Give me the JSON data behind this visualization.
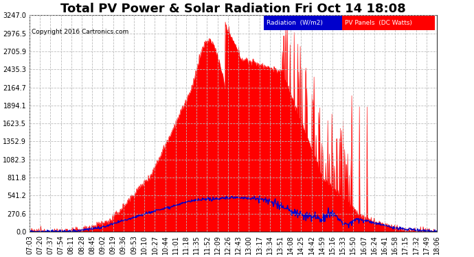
{
  "title": "Total PV Power & Solar Radiation Fri Oct 14 18:08",
  "copyright": "Copyright 2016 Cartronics.com",
  "background_color": "#ffffff",
  "plot_bg_color": "#ffffff",
  "grid_color": "#bbbbbb",
  "yticks": [
    0.0,
    270.6,
    541.2,
    811.8,
    1082.3,
    1352.9,
    1623.5,
    1894.1,
    2164.7,
    2435.3,
    2705.9,
    2976.5,
    3247.0
  ],
  "ymax": 3247.0,
  "pv_color": "#ff0000",
  "radiation_color": "#0000cc",
  "legend_radiation_bg": "#0000cc",
  "legend_pv_bg": "#ff0000",
  "legend_radiation_label": "Radiation  (W/m2)",
  "legend_pv_label": "PV Panels  (DC Watts)",
  "title_fontsize": 13,
  "axis_fontsize": 7,
  "copyright_fontsize": 6.5,
  "xtick_labels": [
    "07:03",
    "07:20",
    "07:37",
    "07:54",
    "08:11",
    "08:28",
    "08:45",
    "09:02",
    "09:19",
    "09:36",
    "09:53",
    "10:10",
    "10:27",
    "10:44",
    "11:01",
    "11:18",
    "11:35",
    "11:52",
    "12:09",
    "12:26",
    "12:43",
    "13:00",
    "13:17",
    "13:34",
    "13:51",
    "14:08",
    "14:25",
    "14:42",
    "14:59",
    "15:16",
    "15:33",
    "15:50",
    "16:07",
    "16:24",
    "16:41",
    "16:58",
    "17:15",
    "17:32",
    "17:49",
    "18:06"
  ]
}
